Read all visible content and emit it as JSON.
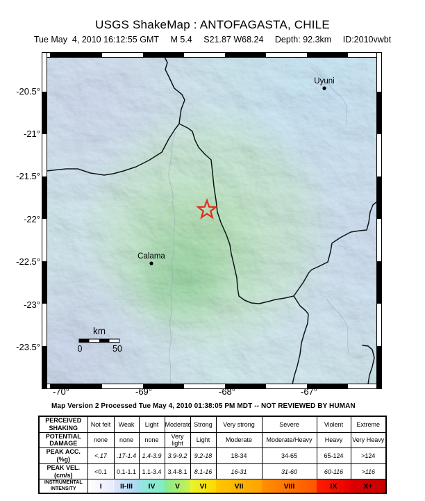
{
  "header": {
    "title": "USGS ShakeMap : ANTOFAGASTA, CHILE",
    "subtitle": {
      "datetime": "Tue May  4, 2010 16:12:55 GMT",
      "magnitude": "M 5.4",
      "location": "S21.87 W68.24",
      "depth": "Depth: 92.3km",
      "event_id": "ID:2010vwbt"
    }
  },
  "map": {
    "lat_labels": [
      "-20.5°",
      "-21°",
      "-21.5°",
      "-22°",
      "-22.5°",
      "-23°",
      "-23.5°"
    ],
    "lon_labels": [
      "-70°",
      "-69°",
      "-68°",
      "-67°"
    ],
    "cities": [
      {
        "name": "Uyuni"
      },
      {
        "name": "Calama"
      }
    ],
    "scale_bar": {
      "unit": "km",
      "start_label": "0",
      "end_label": "50"
    },
    "epicenter": {
      "marker_color": "#e1301f"
    }
  },
  "caption": "Map Version 2 Processed Tue May 4, 2010 01:38:05 PM MDT -- NOT REVIEWED BY HUMAN",
  "legend_table": {
    "rows": [
      {
        "label": "PERCEIVED\nSHAKING",
        "cells": [
          "Not felt",
          "Weak",
          "Light",
          "Moderate",
          "Strong",
          "Very strong",
          "Severe",
          "Violent",
          "Extreme"
        ]
      },
      {
        "label": "POTENTIAL\nDAMAGE",
        "cells": [
          "none",
          "none",
          "none",
          "Very light",
          "Light",
          "Moderate",
          "Moderate/Heavy",
          "Heavy",
          "Very Heavy"
        ]
      },
      {
        "label": "PEAK ACC.(%g)",
        "cells": [
          "<.17",
          ".17-1.4",
          "1.4-3.9",
          "3.9-9.2",
          "9.2-18",
          "18-34",
          "34-65",
          "65-124",
          ">124"
        ]
      },
      {
        "label": "PEAK VEL.(cm/s)",
        "cells": [
          "<0.1",
          "0.1-1.1",
          "1.1-3.4",
          "3.4-8.1",
          "8.1-16",
          "16-31",
          "31-60",
          "60-116",
          ">116"
        ]
      },
      {
        "label": "INSTRUMENTAL\nINTENSITY",
        "cells": [
          "I",
          "II-III",
          "IV",
          "V",
          "VI",
          "VII",
          "VIII",
          "IX",
          "X+"
        ]
      }
    ],
    "intensity_colors": [
      [
        "#ffffff",
        "#e8ecfb"
      ],
      [
        "#dfe4fc",
        "#a6d9f0"
      ],
      [
        "#97e5e5",
        "#81edc2"
      ],
      [
        "#86ea93",
        "#c8f24c"
      ],
      [
        "#e8f52e",
        "#ffd800"
      ],
      [
        "#ffc800",
        "#ffa200"
      ],
      [
        "#ff9100",
        "#ff5400"
      ],
      [
        "#ff1e00",
        "#e60000"
      ],
      [
        "#dc0000",
        "#c80000"
      ]
    ]
  }
}
